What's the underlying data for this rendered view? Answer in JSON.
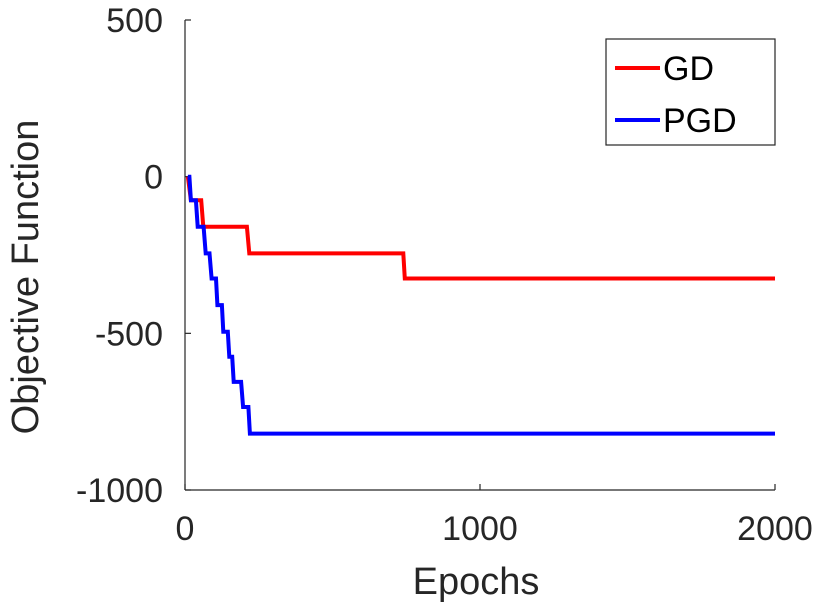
{
  "chart_data": {
    "type": "line",
    "title": "",
    "xlabel": "Epochs",
    "ylabel": "Objective Function",
    "xlim": [
      0,
      2000
    ],
    "ylim": [
      -1000,
      500
    ],
    "x_ticks": [
      0,
      1000,
      2000
    ],
    "y_ticks": [
      500,
      0,
      -500,
      -1000
    ],
    "x_tick_labels": [
      "0",
      "1000",
      "2000"
    ],
    "y_tick_labels": [
      "500",
      "0",
      "-500",
      "-1000"
    ],
    "grid": false,
    "legend": "top-right",
    "series": [
      {
        "name": "GD",
        "color": "#ff0000",
        "points": [
          [
            10,
            0
          ],
          [
            20,
            -75
          ],
          [
            55,
            -75
          ],
          [
            62,
            -160
          ],
          [
            210,
            -160
          ],
          [
            218,
            -245
          ],
          [
            740,
            -245
          ],
          [
            745,
            -325
          ],
          [
            2000,
            -325
          ]
        ]
      },
      {
        "name": "PGD",
        "color": "#0000ff",
        "points": [
          [
            10,
            0
          ],
          [
            15,
            0
          ],
          [
            20,
            -75
          ],
          [
            37,
            -75
          ],
          [
            43,
            -160
          ],
          [
            63,
            -160
          ],
          [
            70,
            -245
          ],
          [
            83,
            -245
          ],
          [
            90,
            -325
          ],
          [
            105,
            -325
          ],
          [
            110,
            -410
          ],
          [
            125,
            -410
          ],
          [
            130,
            -495
          ],
          [
            145,
            -495
          ],
          [
            150,
            -575
          ],
          [
            160,
            -575
          ],
          [
            165,
            -655
          ],
          [
            190,
            -655
          ],
          [
            197,
            -735
          ],
          [
            215,
            -735
          ],
          [
            220,
            -820
          ],
          [
            2000,
            -820
          ]
        ]
      }
    ]
  }
}
